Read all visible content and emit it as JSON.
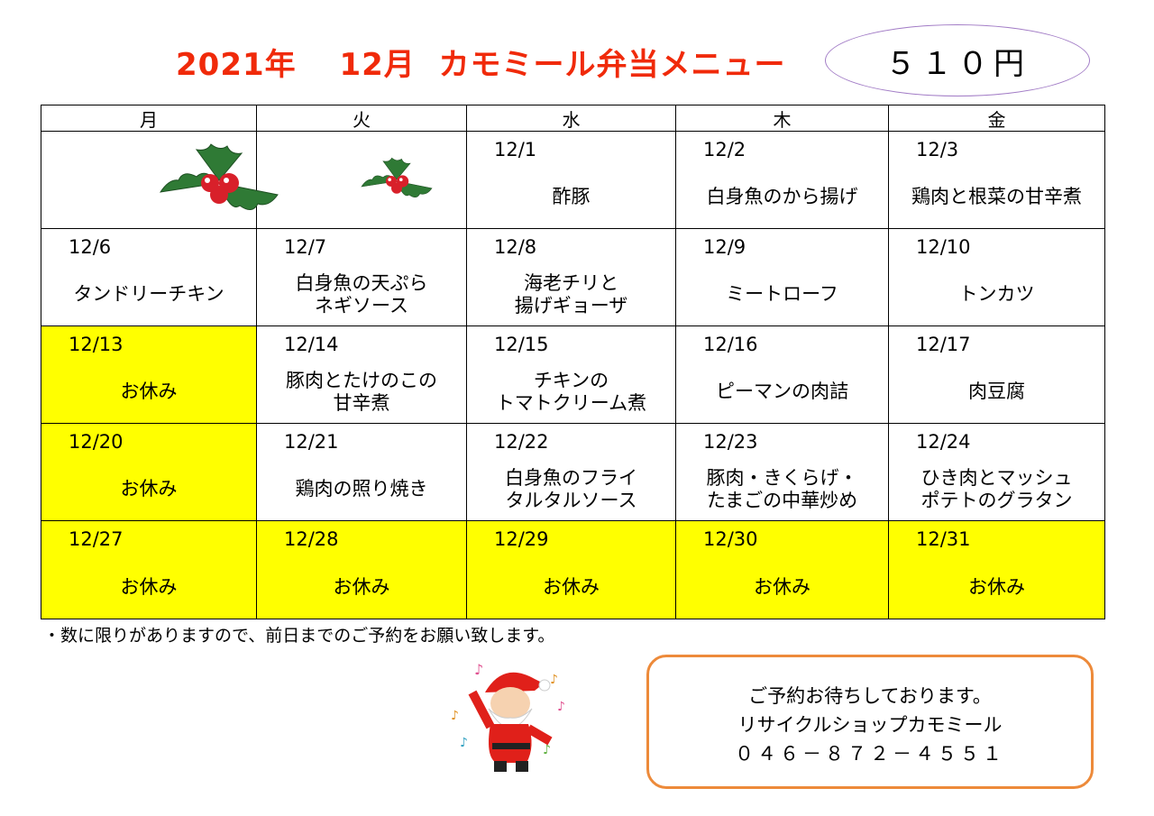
{
  "header": {
    "title": "2021年　 12月  カモミール弁当メニュー",
    "price": "５１０円"
  },
  "calendar": {
    "weekdays": [
      "月",
      "火",
      "水",
      "木",
      "金"
    ],
    "colors": {
      "holiday": "#ffff00",
      "title": "#f02a0a"
    },
    "rows": [
      {
        "cells": [
          {
            "date": "",
            "menu": "",
            "image": "holly"
          },
          {
            "date": "",
            "menu": "",
            "image": "holly"
          },
          {
            "date": "12/1",
            "menu": "酢豚"
          },
          {
            "date": "12/2",
            "menu": "白身魚のから揚げ"
          },
          {
            "date": "12/3",
            "menu": "鶏肉と根菜の甘辛煮"
          }
        ]
      },
      {
        "cells": [
          {
            "date": "12/6",
            "menu": "タンドリーチキン"
          },
          {
            "date": "12/7",
            "menu": "白身魚の天ぷら\nネギソース"
          },
          {
            "date": "12/8",
            "menu": "海老チリと\n揚げギョーザ"
          },
          {
            "date": "12/9",
            "menu": "ミートローフ"
          },
          {
            "date": "12/10",
            "menu": "トンカツ"
          }
        ]
      },
      {
        "cells": [
          {
            "date": "12/13",
            "menu": "お休み",
            "holiday": true
          },
          {
            "date": "12/14",
            "menu": "豚肉とたけのこの\n甘辛煮"
          },
          {
            "date": "12/15",
            "menu": "チキンの\nトマトクリーム煮"
          },
          {
            "date": "12/16",
            "menu": "ピーマンの肉詰"
          },
          {
            "date": "12/17",
            "menu": "肉豆腐"
          }
        ]
      },
      {
        "cells": [
          {
            "date": "12/20",
            "menu": "お休み",
            "holiday": true
          },
          {
            "date": "12/21",
            "menu": "鶏肉の照り焼き"
          },
          {
            "date": "12/22",
            "menu": "白身魚のフライ\nタルタルソース"
          },
          {
            "date": "12/23",
            "menu": "豚肉・きくらげ・\nたまごの中華炒め"
          },
          {
            "date": "12/24",
            "menu": "ひき肉とマッシュ\nポテトのグラタン"
          }
        ]
      },
      {
        "cells": [
          {
            "date": "12/27",
            "menu": "お休み",
            "holiday": true
          },
          {
            "date": "12/28",
            "menu": "お休み",
            "holiday": true
          },
          {
            "date": "12/29",
            "menu": "お休み",
            "holiday": true
          },
          {
            "date": "12/30",
            "menu": "お休み",
            "holiday": true
          },
          {
            "date": "12/31",
            "menu": "お休み",
            "holiday": true
          }
        ]
      }
    ]
  },
  "note": "・数に限りがありますので、前日までのご予約をお願い致します。",
  "contact": {
    "line1": "ご予約お待ちしております。",
    "line2": "リサイクルショップカモミール",
    "phone": "０４６－８７２－４５５１"
  }
}
